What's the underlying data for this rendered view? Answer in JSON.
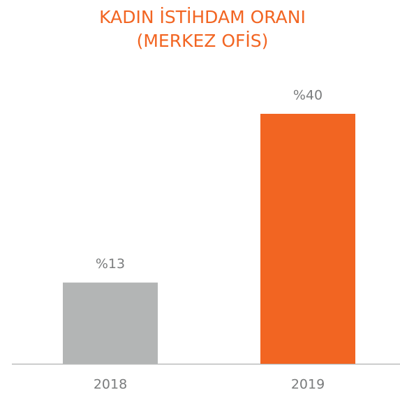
{
  "chart_data": {
    "type": "bar",
    "title": "KADIN İSTİHDAM ORANI",
    "subtitle": "(MERKEZ OFİS)",
    "categories": [
      "2018",
      "2019"
    ],
    "values": [
      13,
      40
    ],
    "value_labels": [
      "%13",
      "%40"
    ],
    "colors": [
      "#b3b5b5",
      "#f26522"
    ]
  }
}
